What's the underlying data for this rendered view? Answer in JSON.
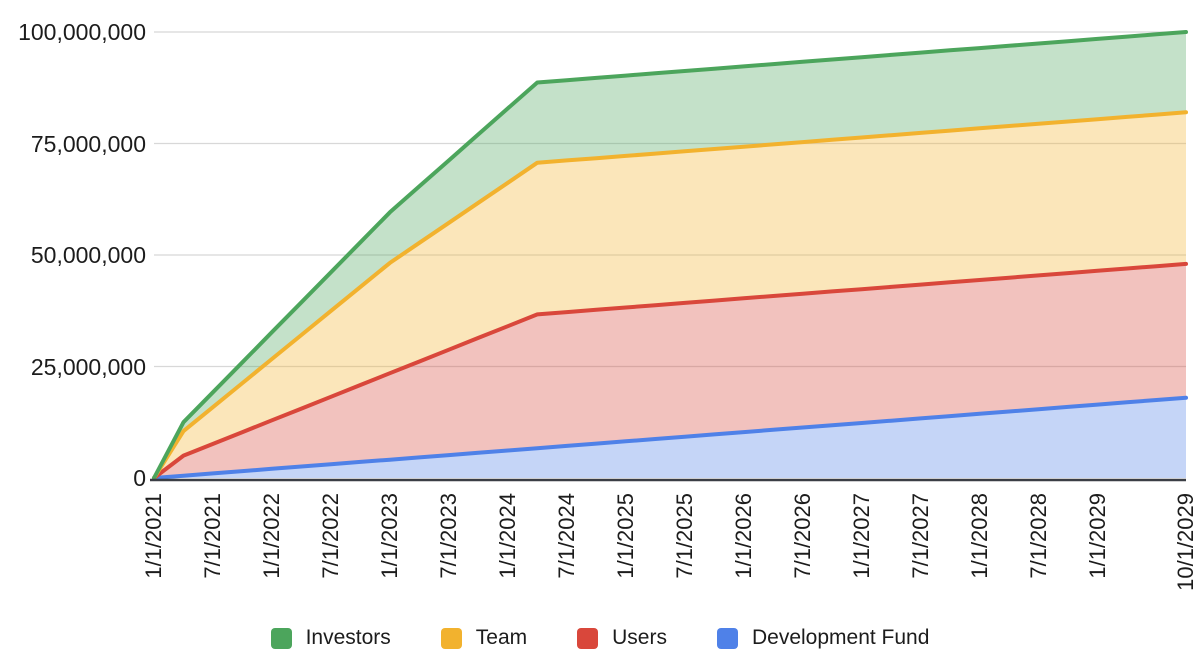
{
  "page": {
    "background": "#FFFFFF",
    "title": ""
  },
  "chart_data": {
    "type": "area",
    "stacked": true,
    "title": "",
    "xlabel": "",
    "ylabel": "",
    "grid": true,
    "legend_position": "bottom",
    "ylim": [
      0,
      100000000
    ],
    "fill_opacity": 0.33,
    "gridline_color": "#D8D8D8",
    "axis_line_color": "#3B3E45",
    "text_color": "#1C1C1C",
    "y_ticks": [
      {
        "value": 0,
        "label": "0"
      },
      {
        "value": 25000000,
        "label": "25,000,000"
      },
      {
        "value": 50000000,
        "label": "50,000,000"
      },
      {
        "value": 75000000,
        "label": "75,000,000"
      },
      {
        "value": 100000000,
        "label": "100,000,000"
      }
    ],
    "x": [
      "1/1/2021",
      "4/1/2021",
      "7/1/2021",
      "10/1/2021",
      "1/1/2022",
      "4/1/2022",
      "7/1/2022",
      "10/1/2022",
      "1/1/2023",
      "4/1/2023",
      "7/1/2023",
      "10/1/2023",
      "1/1/2024",
      "4/1/2024",
      "7/1/2024",
      "10/1/2024",
      "1/1/2025",
      "4/1/2025",
      "7/1/2025",
      "10/1/2025",
      "1/1/2026",
      "4/1/2026",
      "7/1/2026",
      "10/1/2026",
      "1/1/2027",
      "4/1/2027",
      "7/1/2027",
      "10/1/2027",
      "1/1/2028",
      "4/1/2028",
      "7/1/2028",
      "10/1/2028",
      "1/1/2029",
      "4/1/2029",
      "7/1/2029",
      "10/1/2029"
    ],
    "visible_x_tick_indices": [
      0,
      2,
      4,
      6,
      8,
      10,
      12,
      14,
      16,
      18,
      20,
      22,
      24,
      26,
      28,
      30,
      32,
      35
    ],
    "visible_x_tick_labels": [
      "1/1/2021",
      "7/1/2021",
      "1/1/2022",
      "7/1/2022",
      "1/1/2023",
      "7/1/2023",
      "1/1/2024",
      "7/1/2024",
      "1/1/2025",
      "7/1/2025",
      "1/1/2026",
      "7/1/2026",
      "1/1/2027",
      "7/1/2027",
      "1/1/2028",
      "7/1/2028",
      "1/1/2029",
      "10/1/2029"
    ],
    "stack_order_bottom_to_top": [
      "Development Fund",
      "Users",
      "Team",
      "Investors"
    ],
    "series": [
      {
        "name": "Investors",
        "color": "#4CA55C",
        "values": [
          0,
          2000000,
          3333333,
          4666667,
          6000000,
          7333333,
          8666667,
          10000000,
          11333333,
          12666667,
          14000000,
          15333333,
          16666667,
          18000000,
          18000000,
          18000000,
          18000000,
          18000000,
          18000000,
          18000000,
          18000000,
          18000000,
          18000000,
          18000000,
          18000000,
          18000000,
          18000000,
          18000000,
          18000000,
          18000000,
          18000000,
          18000000,
          18000000,
          18000000,
          18000000,
          18000000
        ]
      },
      {
        "name": "Team",
        "color": "#F2B22E",
        "values": [
          0,
          5500000,
          8250000,
          11000000,
          13750000,
          16500000,
          19250000,
          22000000,
          24750000,
          26600000,
          28450000,
          30300000,
          32150000,
          34000000,
          34000000,
          34000000,
          34000000,
          34000000,
          34000000,
          34000000,
          34000000,
          34000000,
          34000000,
          34000000,
          34000000,
          34000000,
          34000000,
          34000000,
          34000000,
          34000000,
          34000000,
          34000000,
          34000000,
          34000000,
          34000000,
          34000000
        ]
      },
      {
        "name": "Users",
        "color": "#D9473B",
        "values": [
          0,
          4500000,
          6625000,
          8750000,
          10875000,
          13000000,
          15125000,
          17250000,
          19375000,
          21500000,
          23625000,
          25750000,
          27875000,
          30000000,
          30000000,
          30000000,
          30000000,
          30000000,
          30000000,
          30000000,
          30000000,
          30000000,
          30000000,
          30000000,
          30000000,
          30000000,
          30000000,
          30000000,
          30000000,
          30000000,
          30000000,
          30000000,
          30000000,
          30000000,
          30000000,
          30000000
        ]
      },
      {
        "name": "Development Fund",
        "color": "#4F81E8",
        "values": [
          0,
          514286,
          1028571,
          1542857,
          2057143,
          2571429,
          3085714,
          3600000,
          4114286,
          4628571,
          5142857,
          5657143,
          6171429,
          6685714,
          7200000,
          7714286,
          8228571,
          8742857,
          9257143,
          9771429,
          10285714,
          10800000,
          11314286,
          11828571,
          12342857,
          12857143,
          13371429,
          13885714,
          14400000,
          14914286,
          15428571,
          15942857,
          16457143,
          16971429,
          17485714,
          18000000
        ]
      }
    ]
  }
}
